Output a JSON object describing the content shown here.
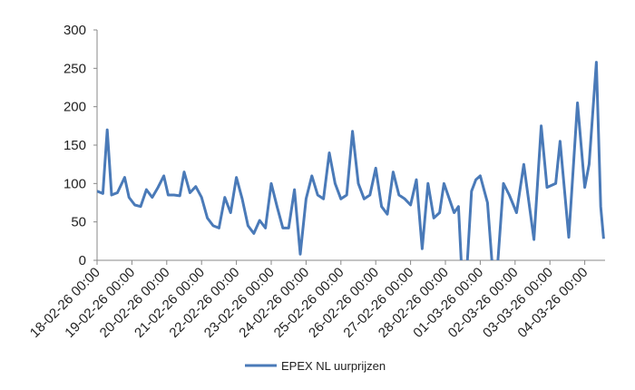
{
  "chart_data": {
    "type": "line",
    "x": [
      0,
      4,
      7,
      10,
      14,
      19,
      22,
      26,
      30,
      34,
      38,
      42,
      46,
      49,
      53,
      57,
      60,
      64,
      68,
      72,
      76,
      80,
      84,
      88,
      92,
      96,
      100,
      104,
      108,
      112,
      116,
      120,
      124,
      128,
      132,
      136,
      140,
      144,
      148,
      152,
      156,
      160,
      164,
      168,
      172,
      176,
      180,
      184,
      188,
      192,
      196,
      200,
      204,
      208,
      212,
      216,
      220,
      224,
      228,
      232,
      236,
      239,
      246,
      249,
      251,
      255,
      258,
      261,
      264,
      269,
      272,
      276,
      280,
      284,
      289,
      294,
      301,
      306,
      310,
      316,
      319,
      325,
      331,
      336,
      339,
      344,
      347,
      349
    ],
    "series": [
      {
        "name": "EPEX NL uurprijzen",
        "color": "#4a7ab8",
        "values": [
          90,
          87,
          170,
          85,
          88,
          108,
          82,
          72,
          70,
          92,
          82,
          95,
          110,
          85,
          85,
          84,
          115,
          88,
          96,
          82,
          55,
          45,
          42,
          82,
          62,
          108,
          80,
          45,
          35,
          52,
          42,
          100,
          70,
          42,
          42,
          92,
          8,
          80,
          110,
          85,
          80,
          140,
          100,
          80,
          85,
          168,
          100,
          80,
          85,
          120,
          70,
          60,
          115,
          85,
          80,
          72,
          105,
          15,
          100,
          55,
          62,
          100,
          62,
          70,
          -5,
          -5,
          90,
          105,
          110,
          75,
          0,
          -5,
          100,
          85,
          62,
          125,
          27,
          175,
          95,
          100,
          155,
          30,
          205,
          95,
          125,
          258,
          70,
          28
        ]
      }
    ],
    "xlim": [
      0,
      350
    ],
    "xticks": [
      {
        "value": 0,
        "label": "18-02-26 00:00"
      },
      {
        "value": 24,
        "label": "19-02-26 00:00"
      },
      {
        "value": 48,
        "label": "20-02-26 00:00"
      },
      {
        "value": 72,
        "label": "21-02-26 00:00"
      },
      {
        "value": 96,
        "label": "22-02-26 00:00"
      },
      {
        "value": 120,
        "label": "23-02-26 00:00"
      },
      {
        "value": 144,
        "label": "24-02-26 00:00"
      },
      {
        "value": 168,
        "label": "25-02-26 00:00"
      },
      {
        "value": 192,
        "label": "26-02-26 00:00"
      },
      {
        "value": 216,
        "label": "27-02-26 00:00"
      },
      {
        "value": 240,
        "label": "28-02-26 00:00"
      },
      {
        "value": 264,
        "label": "01-03-26 00:00"
      },
      {
        "value": 288,
        "label": "02-03-26 00:00"
      },
      {
        "value": 312,
        "label": "03-03-26 00:00"
      },
      {
        "value": 336,
        "label": "04-03-26 00:00"
      }
    ],
    "ylim": [
      0,
      300
    ],
    "yticks": [
      0,
      50,
      100,
      150,
      200,
      250,
      300
    ],
    "grid": false
  }
}
